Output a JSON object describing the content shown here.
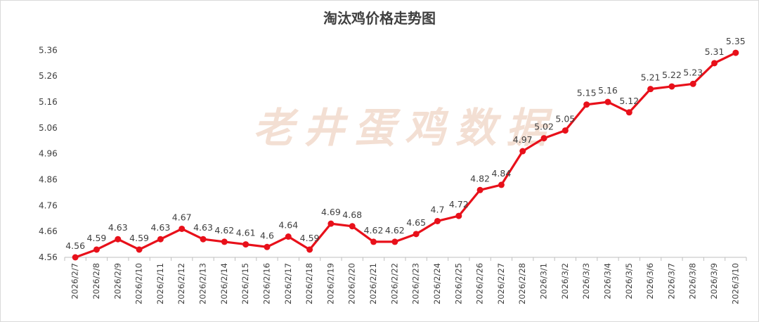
{
  "watermark": "老井蛋鸡数据",
  "chart_data": {
    "type": "line",
    "title": "淘汰鸡价格走势图",
    "xlabel": "",
    "ylabel": "",
    "ylim": [
      4.56,
      5.41
    ],
    "yticks": [
      "4.56",
      "4.66",
      "4.76",
      "4.86",
      "4.96",
      "5.06",
      "5.16",
      "5.26",
      "5.36"
    ],
    "grid": false,
    "legend": "none",
    "categories": [
      "2026/2/7",
      "2026/2/8",
      "2026/2/9",
      "2026/2/10",
      "2026/2/11",
      "2026/2/12",
      "2026/2/13",
      "2026/2/14",
      "2026/2/15",
      "2026/2/16",
      "2026/2/17",
      "2026/2/18",
      "2026/2/19",
      "2026/2/20",
      "2026/2/21",
      "2026/2/22",
      "2026/2/23",
      "2026/2/24",
      "2026/2/25",
      "2026/2/26",
      "2026/2/27",
      "2026/2/28",
      "2026/3/1",
      "2026/3/2",
      "2026/3/3",
      "2026/3/4",
      "2026/3/5",
      "2026/3/6",
      "2026/3/7",
      "2026/3/8",
      "2026/3/9",
      "2026/3/10"
    ],
    "series": [
      {
        "color": "#e8101a",
        "values": [
          4.56,
          4.59,
          4.63,
          4.59,
          4.63,
          4.67,
          4.63,
          4.62,
          4.61,
          4.6,
          4.64,
          4.59,
          4.69,
          4.68,
          4.62,
          4.62,
          4.65,
          4.7,
          4.72,
          4.82,
          4.84,
          4.97,
          5.02,
          5.05,
          5.15,
          5.16,
          5.12,
          5.21,
          5.22,
          5.23,
          5.31,
          5.35
        ],
        "labels": [
          "4.56",
          "4.59",
          "4.63",
          "4.59",
          "4.63",
          "4.67",
          "4.63",
          "4.62",
          "4.61",
          "4.6",
          "4.64",
          "4.59",
          "4.69",
          "4.68",
          "4.62",
          "4.62",
          "4.65",
          "4.7",
          "4.72",
          "4.82",
          "4.84",
          "4.97",
          "5.02",
          "5.05",
          "5.15",
          "5.16",
          "5.12",
          "5.21",
          "5.22",
          "5.23",
          "5.31",
          "5.35"
        ]
      }
    ]
  }
}
